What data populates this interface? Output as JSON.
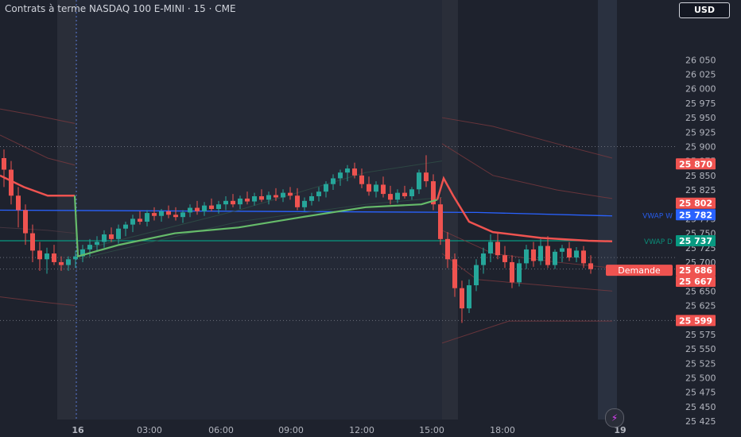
{
  "header": {
    "title": "Contrats à terme NASDAQ 100 E-MINI · 15 · CME",
    "currency_button": "USD"
  },
  "colors": {
    "background": "#1e222d",
    "session_shade": "#2a2e39",
    "up": "#26a69a",
    "down": "#ef5350",
    "vwap_session": "#66bb6a",
    "vwap_week": "#2962ff",
    "vwap_d": "#089981",
    "bands": "#7a3a3e"
  },
  "icons": {
    "lightning": "lightning-icon"
  },
  "chart_data": {
    "type": "candlestick",
    "title": "Contrats à terme NASDAQ 100 E-MINI · 15 · CME",
    "y_axis": {
      "position": "right",
      "ylim": [
        25420,
        26080
      ],
      "ticks": [
        26050,
        26025,
        26000,
        25975,
        25950,
        25925,
        25900,
        25875,
        25850,
        25825,
        25800,
        25775,
        25750,
        25725,
        25700,
        25675,
        25650,
        25625,
        25600,
        25575,
        25550,
        25525,
        25500,
        25475,
        25450,
        25425
      ]
    },
    "x_axis": {
      "ticks": [
        "16",
        "03:00",
        "06:00",
        "09:00",
        "12:00",
        "15:00",
        "18:00",
        "19"
      ]
    },
    "price_labels": [
      {
        "value": "25 870",
        "color": "#ef5350"
      },
      {
        "value": "25 802",
        "color": "#ef5350"
      },
      {
        "value": "25 782",
        "color": "#2962ff",
        "line_label": "VWAP W"
      },
      {
        "value": "25 737",
        "color": "#089981",
        "line_label": "VWAP D"
      },
      {
        "value": "25 686",
        "color": "#ef5350",
        "tag": "Demande"
      },
      {
        "value": "25 667",
        "color": "#ef5350"
      },
      {
        "value": "25 599",
        "color": "#ef5350"
      }
    ],
    "vwap_week": 25782,
    "vwap_day": 25737,
    "dotted_levels": [
      25900,
      25708,
      25688,
      25599
    ],
    "sessions": [
      {
        "from": "day1",
        "to": "16 00:00"
      },
      {
        "from": "16 00:00",
        "to": "16 15:00"
      },
      {
        "from": "16 15:00",
        "to": "19"
      }
    ],
    "candles": [
      [
        25880,
        25895,
        25830,
        25860
      ],
      [
        25860,
        25875,
        25800,
        25815
      ],
      [
        25815,
        25830,
        25760,
        25790
      ],
      [
        25790,
        25800,
        25730,
        25750
      ],
      [
        25750,
        25765,
        25700,
        25720
      ],
      [
        25720,
        25735,
        25685,
        25705
      ],
      [
        25705,
        25725,
        25680,
        25715
      ],
      [
        25715,
        25730,
        25695,
        25700
      ],
      [
        25700,
        25710,
        25685,
        25695
      ],
      [
        25695,
        25710,
        25685,
        25705
      ],
      [
        25705,
        25720,
        25690,
        25710
      ],
      [
        25710,
        25730,
        25700,
        25722
      ],
      [
        25722,
        25740,
        25710,
        25730
      ],
      [
        25730,
        25745,
        25718,
        25735
      ],
      [
        25735,
        25755,
        25725,
        25748
      ],
      [
        25748,
        25760,
        25735,
        25740
      ],
      [
        25740,
        25765,
        25732,
        25758
      ],
      [
        25758,
        25770,
        25745,
        25765
      ],
      [
        25765,
        25782,
        25752,
        25775
      ],
      [
        25775,
        25788,
        25765,
        25770
      ],
      [
        25770,
        25790,
        25762,
        25785
      ],
      [
        25785,
        25795,
        25772,
        25780
      ],
      [
        25780,
        25792,
        25770,
        25788
      ],
      [
        25788,
        25798,
        25776,
        25782
      ],
      [
        25782,
        25795,
        25772,
        25778
      ],
      [
        25778,
        25790,
        25768,
        25786
      ],
      [
        25786,
        25800,
        25778,
        25794
      ],
      [
        25794,
        25806,
        25782,
        25788
      ],
      [
        25788,
        25804,
        25780,
        25798
      ],
      [
        25798,
        25810,
        25788,
        25792
      ],
      [
        25792,
        25806,
        25784,
        25800
      ],
      [
        25800,
        25814,
        25790,
        25806
      ],
      [
        25806,
        25818,
        25795,
        25800
      ],
      [
        25800,
        25815,
        25792,
        25810
      ],
      [
        25810,
        25822,
        25800,
        25805
      ],
      [
        25805,
        25820,
        25798,
        25814
      ],
      [
        25814,
        25826,
        25804,
        25808
      ],
      [
        25808,
        25822,
        25800,
        25816
      ],
      [
        25816,
        25828,
        25806,
        25812
      ],
      [
        25812,
        25826,
        25804,
        25820
      ],
      [
        25820,
        25830,
        25808,
        25815
      ],
      [
        25815,
        25828,
        25790,
        25795
      ],
      [
        25795,
        25812,
        25788,
        25806
      ],
      [
        25806,
        25820,
        25798,
        25814
      ],
      [
        25814,
        25830,
        25805,
        25822
      ],
      [
        25822,
        25840,
        25812,
        25835
      ],
      [
        25835,
        25852,
        25825,
        25845
      ],
      [
        25845,
        25860,
        25832,
        25855
      ],
      [
        25855,
        25868,
        25840,
        25862
      ],
      [
        25862,
        25872,
        25845,
        25850
      ],
      [
        25850,
        25862,
        25828,
        25835
      ],
      [
        25835,
        25848,
        25815,
        25822
      ],
      [
        25822,
        25840,
        25812,
        25834
      ],
      [
        25834,
        25848,
        25812,
        25818
      ],
      [
        25818,
        25832,
        25800,
        25808
      ],
      [
        25808,
        25826,
        25802,
        25820
      ],
      [
        25820,
        25832,
        25810,
        25814
      ],
      [
        25814,
        25830,
        25808,
        25826
      ],
      [
        25826,
        25860,
        25818,
        25855
      ],
      [
        25855,
        25885,
        25830,
        25840
      ],
      [
        25840,
        25852,
        25790,
        25800
      ],
      [
        25800,
        25812,
        25730,
        25740
      ],
      [
        25740,
        25752,
        25690,
        25705
      ],
      [
        25705,
        25715,
        25640,
        25655
      ],
      [
        25655,
        25668,
        25595,
        25620
      ],
      [
        25620,
        25670,
        25612,
        25660
      ],
      [
        25660,
        25705,
        25650,
        25695
      ],
      [
        25695,
        25725,
        25680,
        25715
      ],
      [
        25715,
        25748,
        25700,
        25735
      ],
      [
        25735,
        25752,
        25705,
        25712
      ],
      [
        25712,
        25728,
        25690,
        25700
      ],
      [
        25700,
        25712,
        25655,
        25665
      ],
      [
        25665,
        25705,
        25658,
        25698
      ],
      [
        25698,
        25730,
        25688,
        25722
      ],
      [
        25722,
        25735,
        25692,
        25702
      ],
      [
        25702,
        25740,
        25695,
        25728
      ],
      [
        25728,
        25745,
        25690,
        25695
      ],
      [
        25695,
        25722,
        25688,
        25718
      ],
      [
        25718,
        25730,
        25700,
        25724
      ],
      [
        25724,
        25735,
        25702,
        25708
      ],
      [
        25708,
        25726,
        25700,
        25720
      ],
      [
        25720,
        25728,
        25690,
        25698
      ],
      [
        25698,
        25712,
        25680,
        25688
      ]
    ]
  }
}
